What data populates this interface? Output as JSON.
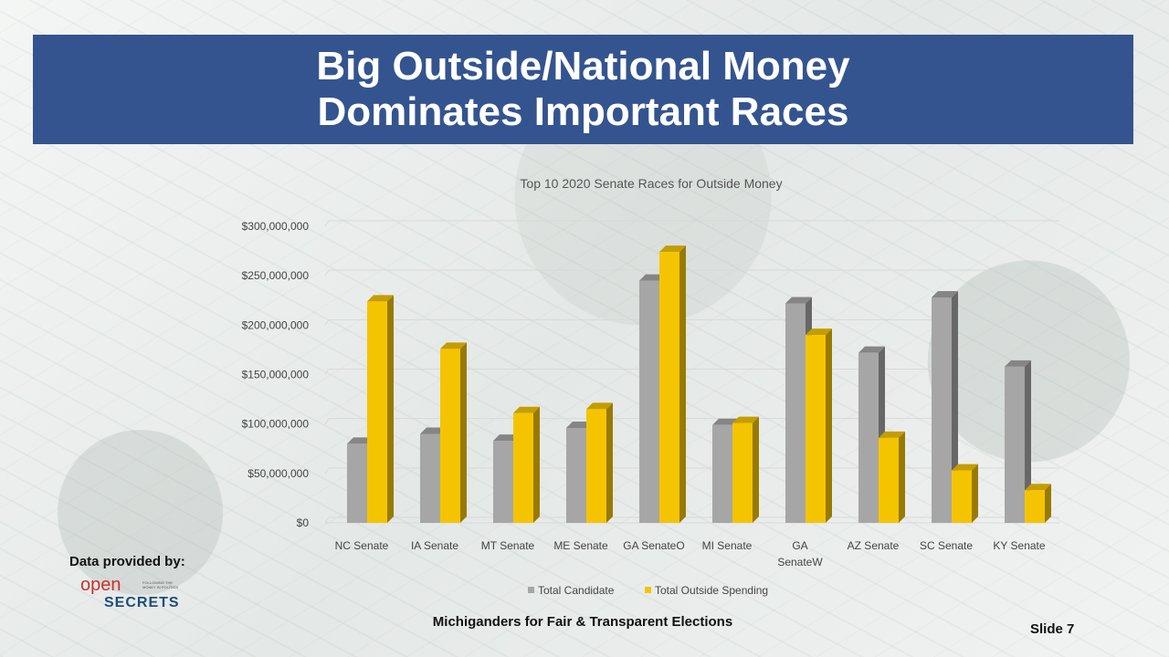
{
  "slide": {
    "title_lines": [
      "Big Outside/National Money",
      "Dominates Important Races"
    ],
    "credit_label": "Data provided by:",
    "logo": {
      "word1": "open",
      "word2": "SECRETS",
      "tagline": "FOLLOWING THE MONEY IN POLITICS"
    },
    "footer": "Michiganders for Fair & Transparent Elections",
    "slide_number": "Slide 7"
  },
  "colors": {
    "title_bg": "#34548f",
    "series_candidate": "#a6a6a6",
    "series_outside": "#f5c400"
  },
  "chart_data": {
    "type": "bar",
    "title": "Top 10 2020 Senate Races  for Outside Money",
    "categories": [
      [
        "NC Senate"
      ],
      [
        "IA Senate"
      ],
      [
        "MT Senate"
      ],
      [
        "ME Senate"
      ],
      [
        "GA SenateO"
      ],
      [
        "MI Senate"
      ],
      [
        "GA",
        "SenateW"
      ],
      [
        "AZ Senate"
      ],
      [
        "SC Senate"
      ],
      [
        "KY Senate"
      ]
    ],
    "series": [
      {
        "name": "Total Candidate",
        "color": "#a6a6a6",
        "values": [
          80000000,
          90000000,
          83000000,
          96000000,
          245000000,
          99000000,
          222000000,
          172000000,
          228000000,
          158000000
        ]
      },
      {
        "name": "Total Outside Spending",
        "color": "#f5c400",
        "values": [
          224000000,
          176000000,
          111000000,
          115000000,
          274000000,
          101000000,
          190000000,
          86000000,
          53000000,
          33000000
        ]
      }
    ],
    "yticks": [
      "$0",
      "$50,000,000",
      "$100,000,000",
      "$150,000,000",
      "$200,000,000",
      "$250,000,000",
      "$300,000,000"
    ],
    "ylim": [
      0,
      300000000
    ],
    "grid": true,
    "legend_position": "bottom"
  }
}
